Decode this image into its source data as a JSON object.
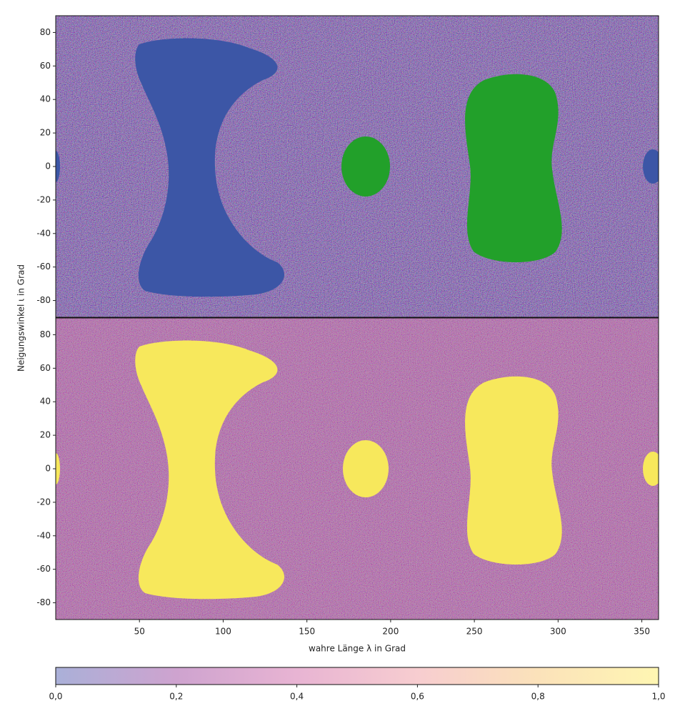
{
  "chart_data": [
    {
      "type": "image",
      "ylabel": "Neigungswinkel ι in Grad",
      "xlim": [
        0,
        360
      ],
      "ylim": [
        -90,
        90
      ],
      "yticks": [
        -80,
        -60,
        -40,
        -20,
        0,
        20,
        40,
        60,
        80
      ]
    },
    {
      "type": "image",
      "xlabel": "wahre Länge λ in Grad",
      "xlim": [
        0,
        360
      ],
      "ylim": [
        -90,
        90
      ],
      "xticks": [
        50,
        100,
        150,
        200,
        250,
        300,
        350
      ],
      "yticks": [
        -80,
        -60,
        -40,
        -20,
        0,
        20,
        40,
        60,
        80
      ]
    },
    {
      "type": "colorbar",
      "xlim": [
        0,
        1
      ],
      "xticks": [
        {
          "value": 0,
          "label": "0,0"
        },
        {
          "value": 0.2,
          "label": "0,2"
        },
        {
          "value": 0.4,
          "label": "0,4"
        },
        {
          "value": 0.6,
          "label": "0,6"
        },
        {
          "value": 0.8,
          "label": "0,8"
        },
        {
          "value": 1,
          "label": "1,0"
        }
      ],
      "colors": [
        "#aab0d8",
        "#cea3cf",
        "#e8b4d3",
        "#f7cdd0",
        "#fbe2ba",
        "#fff6b2"
      ]
    }
  ]
}
